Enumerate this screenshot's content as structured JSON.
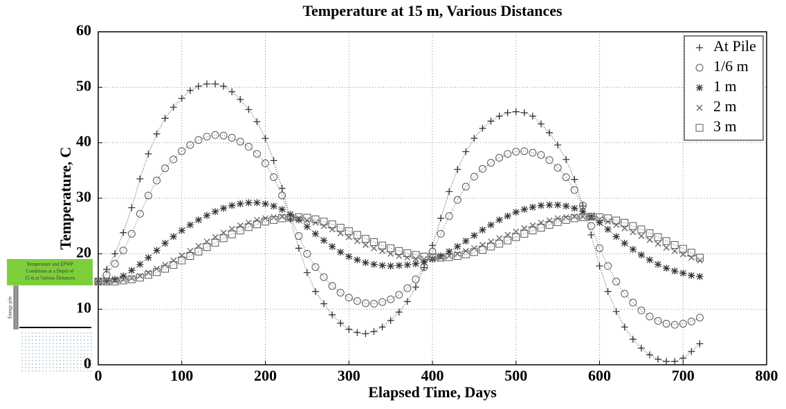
{
  "chart_data": {
    "type": "scatter",
    "title": "Temperature at 15 m, Various Distances",
    "x_label": "Elapsed Time, Days",
    "y_label": "Temperature, C",
    "x": [
      0,
      10,
      20,
      30,
      40,
      50,
      60,
      70,
      80,
      90,
      100,
      110,
      120,
      130,
      140,
      150,
      160,
      170,
      180,
      190,
      200,
      210,
      220,
      230,
      240,
      250,
      260,
      270,
      280,
      290,
      300,
      310,
      320,
      330,
      340,
      350,
      360,
      370,
      380,
      390,
      400,
      410,
      420,
      430,
      440,
      450,
      460,
      470,
      480,
      490,
      500,
      510,
      520,
      530,
      540,
      550,
      560,
      570,
      580,
      590,
      600,
      610,
      620,
      630,
      640,
      650,
      660,
      670,
      680,
      690,
      700,
      710,
      720
    ],
    "series": [
      {
        "name": "At Pile",
        "marker": "plus",
        "color": "#333333",
        "values": [
          15,
          17.2,
          20,
          23.8,
          28.3,
          33.5,
          38,
          41.6,
          44.4,
          46.4,
          48,
          49.4,
          50.2,
          50.6,
          50.6,
          50.2,
          49.2,
          47.8,
          46,
          43.8,
          40.8,
          36.8,
          31.8,
          26.2,
          21,
          16.6,
          13.2,
          11,
          9,
          7.5,
          6.4,
          5.8,
          5.6,
          6,
          6.8,
          8,
          9.5,
          11.4,
          14,
          17.5,
          21.5,
          26.4,
          31.2,
          35.2,
          38.4,
          40.8,
          42.6,
          43.9,
          44.8,
          45.4,
          45.6,
          45.4,
          44.8,
          43.4,
          41.8,
          39.6,
          37,
          33.4,
          28.6,
          23.4,
          17.8,
          13.2,
          9.6,
          6.8,
          4.6,
          3,
          1.8,
          1,
          0.6,
          0.6,
          1.2,
          2.4,
          3.8
        ]
      },
      {
        "name": "1/6 m",
        "marker": "circle",
        "color": "#555555",
        "values": [
          15,
          16.2,
          18.2,
          20.6,
          23.6,
          27.2,
          30.5,
          33.2,
          35.4,
          37,
          38.5,
          39.6,
          40.5,
          41.1,
          41.4,
          41.3,
          40.9,
          40.2,
          39.3,
          38,
          36.3,
          33.8,
          30.5,
          26.6,
          23.2,
          20,
          17.6,
          15.8,
          14.2,
          13,
          12.1,
          11.5,
          11.1,
          11,
          11.3,
          11.8,
          12.6,
          13.8,
          15.4,
          17.6,
          20.4,
          23.6,
          26.8,
          29.7,
          32.1,
          33.9,
          35.3,
          36.4,
          37.3,
          38,
          38.4,
          38.5,
          38.2,
          37.8,
          36.9,
          35.5,
          33.8,
          31.5,
          28.7,
          25,
          21,
          17.8,
          15,
          12.8,
          11.2,
          9.8,
          8.7,
          7.9,
          7.4,
          7.2,
          7.4,
          7.8,
          8.5
        ]
      },
      {
        "name": "1 m",
        "marker": "star",
        "color": "#333333",
        "values": [
          15,
          15.1,
          15.4,
          16,
          17,
          18.1,
          19.3,
          20.6,
          21.9,
          23.1,
          24.2,
          25.2,
          26.1,
          26.9,
          27.6,
          28.2,
          28.7,
          29,
          29.2,
          29.2,
          29,
          28.6,
          28,
          27.1,
          26.1,
          24.9,
          23.6,
          22.4,
          21.3,
          20.3,
          19.5,
          18.9,
          18.4,
          18.1,
          17.9,
          17.8,
          17.9,
          18,
          18.2,
          18.5,
          19,
          19.6,
          20.4,
          21.3,
          22.3,
          23.3,
          24.3,
          25.2,
          26.1,
          26.8,
          27.5,
          28,
          28.4,
          28.7,
          28.8,
          28.8,
          28.6,
          28.2,
          27.6,
          26.7,
          25.6,
          24.4,
          23.1,
          21.9,
          20.8,
          19.8,
          18.9,
          18.1,
          17.4,
          16.9,
          16.5,
          16.1,
          15.9
        ]
      },
      {
        "name": "2 m",
        "marker": "cross",
        "color": "#666666",
        "values": [
          15,
          15,
          15.1,
          15.3,
          15.6,
          16,
          16.6,
          17.3,
          18,
          18.8,
          19.7,
          20.5,
          21.4,
          22.2,
          23,
          23.8,
          24.5,
          25.1,
          25.6,
          26.1,
          26.4,
          26.6,
          26.7,
          26.6,
          26.4,
          26,
          25.6,
          25,
          24.4,
          23.7,
          23,
          22.3,
          21.6,
          21,
          20.5,
          20,
          19.6,
          19.3,
          19.1,
          19,
          19.1,
          19.3,
          19.6,
          20,
          20.5,
          21,
          21.6,
          22.2,
          22.8,
          23.4,
          24,
          24.6,
          25.1,
          25.6,
          26,
          26.4,
          26.6,
          26.7,
          26.7,
          26.5,
          26.2,
          25.8,
          25.2,
          24.6,
          23.9,
          23.2,
          22.5,
          21.8,
          21.1,
          20.5,
          19.9,
          19.3,
          18.8
        ]
      },
      {
        "name": "3 m",
        "marker": "square",
        "color": "#555555",
        "values": [
          15,
          15,
          15,
          15.2,
          15.4,
          15.7,
          16.2,
          16.7,
          17.3,
          18,
          18.8,
          19.6,
          20.4,
          21.2,
          22,
          22.8,
          23.5,
          24.2,
          24.8,
          25.3,
          25.8,
          26.1,
          26.4,
          26.5,
          26.6,
          26.5,
          26.2,
          25.8,
          25.3,
          24.7,
          24.1,
          23.4,
          22.7,
          22.1,
          21.5,
          21,
          20.5,
          20.1,
          19.8,
          19.5,
          19.4,
          19.3,
          19.4,
          19.6,
          19.9,
          20.3,
          20.7,
          21.3,
          21.8,
          22.4,
          23,
          23.6,
          24.2,
          24.7,
          25.2,
          25.7,
          26.1,
          26.4,
          26.6,
          26.7,
          26.6,
          26.4,
          26,
          25.6,
          25,
          24.4,
          23.7,
          23,
          22.3,
          21.6,
          20.9,
          20.2,
          19.3
        ]
      }
    ],
    "xlim": [
      0,
      800
    ],
    "xticks": [
      0,
      100,
      200,
      300,
      400,
      500,
      600,
      700,
      800
    ],
    "ylim": [
      0,
      60
    ],
    "yticks": [
      0,
      10,
      20,
      30,
      40,
      50,
      60
    ],
    "grid": true,
    "legend": "upper right"
  },
  "inset": {
    "caption": [
      "Temperature and EPWP",
      "Conditions at a Depth of",
      "15 m at Various Distances"
    ],
    "pile_label": "Energy pile"
  }
}
